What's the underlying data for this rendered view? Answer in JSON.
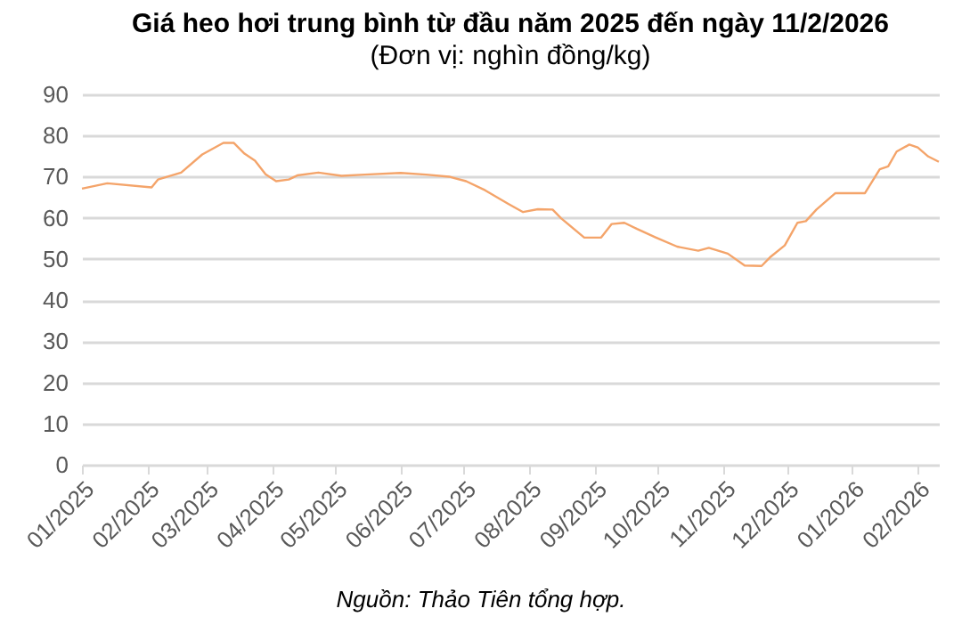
{
  "chart_data": {
    "type": "line",
    "title": "Giá heo hơi trung bình từ đầu năm 2025 đến ngày 11/2/2026",
    "subtitle": "(Đơn vị: nghìn đồng/kg)",
    "annotations": [
      "Nguồn: Thảo Tiên tổng hợp."
    ],
    "x": [
      "2025-01-01",
      "2025-01-13",
      "2025-02-03",
      "2025-02-06",
      "2025-02-17",
      "2025-02-27",
      "2025-03-09",
      "2025-03-14",
      "2025-03-19",
      "2025-03-24",
      "2025-03-29",
      "2025-04-03",
      "2025-04-09",
      "2025-04-13",
      "2025-04-23",
      "2025-05-04",
      "2025-05-15",
      "2025-06-01",
      "2025-06-13",
      "2025-06-24",
      "2025-07-02",
      "2025-07-11",
      "2025-07-22",
      "2025-07-29",
      "2025-08-05",
      "2025-08-12",
      "2025-08-16",
      "2025-08-27",
      "2025-09-04",
      "2025-09-09",
      "2025-09-15",
      "2025-09-21",
      "2025-09-30",
      "2025-10-10",
      "2025-10-20",
      "2025-10-25",
      "2025-11-03",
      "2025-11-11",
      "2025-11-19",
      "2025-11-23",
      "2025-11-30",
      "2025-12-06",
      "2025-12-10",
      "2025-12-15",
      "2025-12-24",
      "2026-01-07",
      "2026-01-14",
      "2026-01-18",
      "2026-01-22",
      "2026-01-28",
      "2026-02-01",
      "2026-02-06",
      "2026-02-11"
    ],
    "series": [
      {
        "color": "#f4a46a",
        "values": [
          67.1,
          68.4,
          67.4,
          69.3,
          71,
          75.4,
          78.2,
          78.2,
          75.6,
          73.9,
          70.6,
          68.9,
          69.3,
          70.3,
          71,
          70.2,
          70.5,
          70.9,
          70.5,
          70,
          68.9,
          66.7,
          63.4,
          61.4,
          62.1,
          62,
          59.9,
          55.2,
          55.2,
          58.5,
          58.8,
          57.3,
          55.2,
          53,
          52,
          52.7,
          51.3,
          48.4,
          48.3,
          50.4,
          53.3,
          58.8,
          59.2,
          62,
          66,
          66,
          71.8,
          72.5,
          76.1,
          77.8,
          77.1,
          74.9,
          73.6
        ]
      }
    ],
    "xlim": [
      "2025-01-01",
      "2026-02-11"
    ],
    "xticks": [
      {
        "value": "2025-01-01",
        "label": "01/2025"
      },
      {
        "value": "2025-02-01",
        "label": "02/2025"
      },
      {
        "value": "2025-03-01",
        "label": "03/2025"
      },
      {
        "value": "2025-04-01",
        "label": "04/2025"
      },
      {
        "value": "2025-05-01",
        "label": "05/2025"
      },
      {
        "value": "2025-06-01",
        "label": "06/2025"
      },
      {
        "value": "2025-07-01",
        "label": "07/2025"
      },
      {
        "value": "2025-08-01",
        "label": "08/2025"
      },
      {
        "value": "2025-09-01",
        "label": "09/2025"
      },
      {
        "value": "2025-10-01",
        "label": "10/2025"
      },
      {
        "value": "2025-11-01",
        "label": "11/2025"
      },
      {
        "value": "2025-12-01",
        "label": "12/2025"
      },
      {
        "value": "2026-01-01",
        "label": "01/2026"
      },
      {
        "value": "2026-02-01",
        "label": "02/2026"
      }
    ],
    "ylim": [
      0,
      90
    ],
    "yticks": [
      0,
      10,
      20,
      30,
      40,
      50,
      60,
      70,
      80,
      90
    ],
    "grid": "y",
    "marker": "none",
    "line_style": "solid",
    "legend": false
  }
}
